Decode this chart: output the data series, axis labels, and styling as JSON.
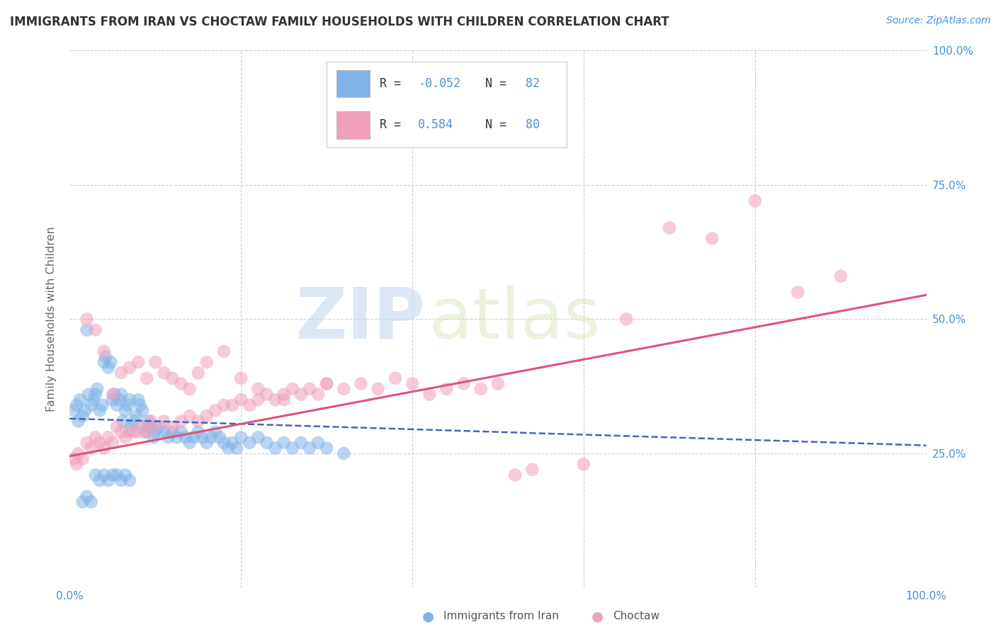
{
  "title": "IMMIGRANTS FROM IRAN VS CHOCTAW FAMILY HOUSEHOLDS WITH CHILDREN CORRELATION CHART",
  "source": "Source: ZipAtlas.com",
  "ylabel": "Family Households with Children",
  "watermark_zip": "ZIP",
  "watermark_atlas": "atlas",
  "xlim": [
    0.0,
    1.0
  ],
  "ylim": [
    0.0,
    1.0
  ],
  "x_ticks": [
    0.0,
    0.2,
    0.4,
    0.6,
    0.8,
    1.0
  ],
  "x_tick_labels": [
    "0.0%",
    "",
    "",
    "",
    "",
    "100.0%"
  ],
  "y_ticks": [
    0.0,
    0.25,
    0.5,
    0.75,
    1.0
  ],
  "y_tick_labels_right": [
    "",
    "25.0%",
    "50.0%",
    "75.0%",
    "100.0%"
  ],
  "blue_scatter_x": [
    0.005,
    0.008,
    0.01,
    0.012,
    0.015,
    0.018,
    0.02,
    0.022,
    0.025,
    0.028,
    0.03,
    0.032,
    0.035,
    0.038,
    0.04,
    0.042,
    0.045,
    0.048,
    0.05,
    0.052,
    0.055,
    0.058,
    0.06,
    0.062,
    0.065,
    0.068,
    0.07,
    0.072,
    0.075,
    0.078,
    0.08,
    0.082,
    0.085,
    0.088,
    0.09,
    0.092,
    0.095,
    0.098,
    0.1,
    0.105,
    0.11,
    0.115,
    0.12,
    0.125,
    0.13,
    0.135,
    0.14,
    0.145,
    0.15,
    0.155,
    0.16,
    0.165,
    0.17,
    0.175,
    0.18,
    0.185,
    0.19,
    0.195,
    0.2,
    0.21,
    0.22,
    0.23,
    0.24,
    0.25,
    0.26,
    0.27,
    0.28,
    0.29,
    0.3,
    0.32,
    0.015,
    0.02,
    0.025,
    0.03,
    0.035,
    0.04,
    0.045,
    0.05,
    0.055,
    0.06,
    0.065,
    0.07
  ],
  "blue_scatter_y": [
    0.33,
    0.34,
    0.31,
    0.35,
    0.32,
    0.33,
    0.48,
    0.36,
    0.34,
    0.35,
    0.36,
    0.37,
    0.33,
    0.34,
    0.42,
    0.43,
    0.41,
    0.42,
    0.35,
    0.36,
    0.34,
    0.35,
    0.36,
    0.31,
    0.33,
    0.34,
    0.35,
    0.3,
    0.31,
    0.32,
    0.35,
    0.34,
    0.33,
    0.29,
    0.3,
    0.31,
    0.3,
    0.28,
    0.29,
    0.3,
    0.29,
    0.28,
    0.29,
    0.28,
    0.29,
    0.28,
    0.27,
    0.28,
    0.29,
    0.28,
    0.27,
    0.28,
    0.29,
    0.28,
    0.27,
    0.26,
    0.27,
    0.26,
    0.28,
    0.27,
    0.28,
    0.27,
    0.26,
    0.27,
    0.26,
    0.27,
    0.26,
    0.27,
    0.26,
    0.25,
    0.16,
    0.17,
    0.16,
    0.21,
    0.2,
    0.21,
    0.2,
    0.21,
    0.21,
    0.2,
    0.21,
    0.2
  ],
  "pink_scatter_x": [
    0.005,
    0.008,
    0.01,
    0.015,
    0.02,
    0.025,
    0.03,
    0.035,
    0.04,
    0.045,
    0.05,
    0.055,
    0.06,
    0.065,
    0.07,
    0.075,
    0.08,
    0.085,
    0.09,
    0.095,
    0.1,
    0.11,
    0.12,
    0.13,
    0.14,
    0.15,
    0.16,
    0.17,
    0.18,
    0.19,
    0.2,
    0.21,
    0.22,
    0.23,
    0.24,
    0.25,
    0.26,
    0.27,
    0.28,
    0.29,
    0.3,
    0.32,
    0.34,
    0.36,
    0.38,
    0.4,
    0.42,
    0.44,
    0.46,
    0.48,
    0.5,
    0.52,
    0.54,
    0.6,
    0.65,
    0.7,
    0.75,
    0.8,
    0.85,
    0.9,
    0.02,
    0.03,
    0.04,
    0.05,
    0.06,
    0.07,
    0.08,
    0.09,
    0.1,
    0.11,
    0.12,
    0.13,
    0.14,
    0.15,
    0.16,
    0.18,
    0.2,
    0.22,
    0.25,
    0.3
  ],
  "pink_scatter_y": [
    0.24,
    0.23,
    0.25,
    0.24,
    0.27,
    0.26,
    0.28,
    0.27,
    0.26,
    0.28,
    0.27,
    0.3,
    0.29,
    0.28,
    0.29,
    0.29,
    0.29,
    0.3,
    0.29,
    0.31,
    0.3,
    0.31,
    0.3,
    0.31,
    0.32,
    0.31,
    0.32,
    0.33,
    0.34,
    0.34,
    0.35,
    0.34,
    0.35,
    0.36,
    0.35,
    0.36,
    0.37,
    0.36,
    0.37,
    0.36,
    0.38,
    0.37,
    0.38,
    0.37,
    0.39,
    0.38,
    0.36,
    0.37,
    0.38,
    0.37,
    0.38,
    0.21,
    0.22,
    0.23,
    0.5,
    0.67,
    0.65,
    0.72,
    0.55,
    0.58,
    0.5,
    0.48,
    0.44,
    0.36,
    0.4,
    0.41,
    0.42,
    0.39,
    0.42,
    0.4,
    0.39,
    0.38,
    0.37,
    0.4,
    0.42,
    0.44,
    0.39,
    0.37,
    0.35,
    0.38
  ],
  "blue_trend_x": [
    0.0,
    1.0
  ],
  "blue_trend_y": [
    0.315,
    0.265
  ],
  "pink_trend_x": [
    0.0,
    1.0
  ],
  "pink_trend_y": [
    0.245,
    0.545
  ],
  "blue_dot_color": "#80b3e8",
  "pink_dot_color": "#f0a0bb",
  "blue_line_color": "#4466bb",
  "pink_line_color": "#dd5577",
  "grid_color": "#cccccc",
  "title_color": "#333333",
  "source_color": "#4a90d9",
  "axis_label_color": "#4a90d9",
  "ylabel_color": "#666666",
  "legend_r_color": "#4a90d9",
  "legend_n_color": "#333333",
  "bottom_legend_color": "#555555",
  "background": "#ffffff"
}
